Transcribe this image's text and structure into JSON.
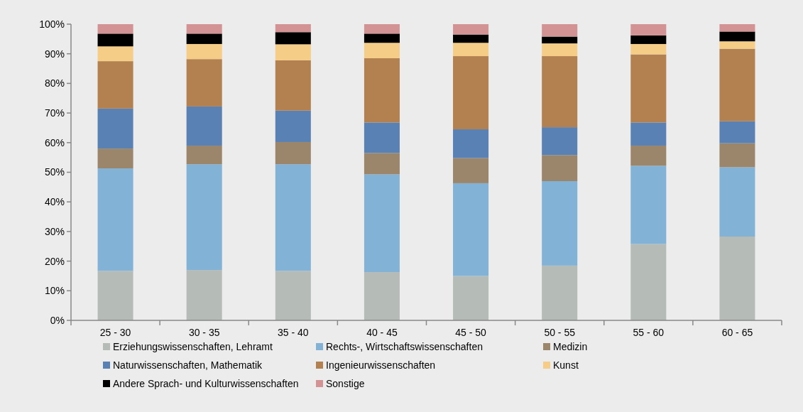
{
  "chart_data": {
    "type": "bar",
    "stacked": true,
    "categories": [
      "25 - 30",
      "30 - 35",
      "35 - 40",
      "40 - 45",
      "45 - 50",
      "50 - 55",
      "55 - 60",
      "60 - 65"
    ],
    "ylim": [
      0,
      100
    ],
    "yticks": [
      {
        "value": 0,
        "label": "0%"
      },
      {
        "value": 10,
        "label": "10%"
      },
      {
        "value": 20,
        "label": "20%"
      },
      {
        "value": 30,
        "label": "30%"
      },
      {
        "value": 40,
        "label": "40%"
      },
      {
        "value": 50,
        "label": "50%"
      },
      {
        "value": 60,
        "label": "60%"
      },
      {
        "value": 70,
        "label": "70%"
      },
      {
        "value": 80,
        "label": "80%"
      },
      {
        "value": 90,
        "label": "90%"
      },
      {
        "value": 100,
        "label": "100%"
      }
    ],
    "legend": "bottom",
    "series": [
      {
        "name": "Erziehungswissenschaften, Lehramt",
        "color": "#b5bcb8",
        "values": [
          16.7,
          17,
          16.7,
          16.3,
          15,
          18.5,
          25.8,
          28.3
        ]
      },
      {
        "name": "Rechts-, Wirtschaftswissenschaften",
        "color": "#82b3d7",
        "values": [
          34.6,
          35.7,
          36,
          33,
          31.3,
          28.5,
          26.4,
          23.4
        ]
      },
      {
        "name": "Medizin",
        "color": "#9b866b",
        "values": [
          6.7,
          6.3,
          7.5,
          7.2,
          8.5,
          8.8,
          6.8,
          8.1
        ]
      },
      {
        "name": "Naturwissenschaften, Mathematik",
        "color": "#5981b4",
        "values": [
          13.5,
          13.2,
          10.6,
          10.3,
          9.7,
          9.4,
          7.8,
          7.4
        ]
      },
      {
        "name": "Ingenieurwissenschaften",
        "color": "#b38150",
        "values": [
          16,
          16,
          17,
          21.7,
          24.7,
          24,
          23,
          24.5
        ]
      },
      {
        "name": "Kunst",
        "color": "#f5cd86",
        "values": [
          5,
          5.1,
          5.4,
          5.2,
          4.5,
          4.3,
          3.5,
          2.5
        ]
      },
      {
        "name": "Andere Sprach- und Kulturwissenschaften",
        "color": "#000000",
        "values": [
          4.3,
          3.5,
          4.1,
          3.1,
          2.8,
          2.3,
          2.9,
          3.3
        ]
      },
      {
        "name": "Sonstige",
        "color": "#d39394",
        "values": [
          3.2,
          3.2,
          2.7,
          3.2,
          3.5,
          4.2,
          3.8,
          2.5
        ]
      }
    ]
  }
}
